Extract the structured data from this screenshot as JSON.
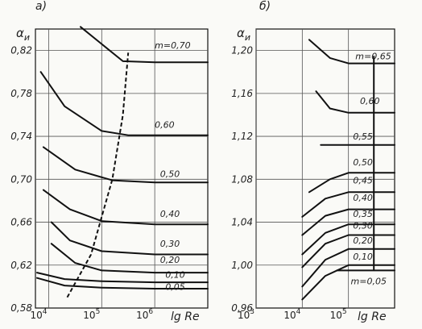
{
  "chart_data": [
    {
      "type": "line",
      "panel_label": "а)",
      "ylabel": "α",
      "ylabel_sub": "и",
      "xlabel": "lg Re",
      "ylim": [
        0.58,
        0.84
      ],
      "xlim": [
        3.75,
        7.0
      ],
      "y_ticks": [
        {
          "v": 0.58,
          "label": "0,58"
        },
        {
          "v": 0.62,
          "label": "0,62"
        },
        {
          "v": 0.66,
          "label": "0,66"
        },
        {
          "v": 0.7,
          "label": "0,70"
        },
        {
          "v": 0.74,
          "label": "0,74"
        },
        {
          "v": 0.78,
          "label": "0,78"
        },
        {
          "v": 0.82,
          "label": "0,82"
        }
      ],
      "x_ticks": [
        {
          "v": 4,
          "label": "10",
          "exp": "4"
        },
        {
          "v": 5,
          "label": "10",
          "exp": "5"
        },
        {
          "v": 6,
          "label": "10",
          "exp": "6"
        }
      ],
      "series": [
        {
          "name": "0,05",
          "label_x": 6.2,
          "label_y": 0.597,
          "points": [
            [
              3.78,
              0.608
            ],
            [
              4.3,
              0.601
            ],
            [
              5.0,
              0.599
            ],
            [
              6.0,
              0.598
            ],
            [
              7.0,
              0.598
            ]
          ]
        },
        {
          "name": "0,10",
          "label_x": 6.2,
          "label_y": 0.608,
          "points": [
            [
              3.78,
              0.613
            ],
            [
              4.3,
              0.607
            ],
            [
              5.0,
              0.605
            ],
            [
              6.0,
              0.604
            ],
            [
              7.0,
              0.604
            ]
          ]
        },
        {
          "name": "0,20",
          "label_x": 6.1,
          "label_y": 0.622,
          "points": [
            [
              4.05,
              0.64
            ],
            [
              4.5,
              0.622
            ],
            [
              5.0,
              0.615
            ],
            [
              6.0,
              0.613
            ],
            [
              7.0,
              0.613
            ]
          ]
        },
        {
          "name": "0,30",
          "label_x": 6.1,
          "label_y": 0.637,
          "points": [
            [
              4.05,
              0.66
            ],
            [
              4.4,
              0.643
            ],
            [
              5.0,
              0.633
            ],
            [
              6.0,
              0.63
            ],
            [
              7.0,
              0.63
            ]
          ]
        },
        {
          "name": "0,40",
          "label_x": 6.1,
          "label_y": 0.665,
          "points": [
            [
              3.9,
              0.69
            ],
            [
              4.4,
              0.672
            ],
            [
              5.0,
              0.661
            ],
            [
              6.0,
              0.658
            ],
            [
              7.0,
              0.658
            ]
          ]
        },
        {
          "name": "0,50",
          "label_x": 6.1,
          "label_y": 0.702,
          "points": [
            [
              3.9,
              0.73
            ],
            [
              4.5,
              0.709
            ],
            [
              5.2,
              0.699
            ],
            [
              6.0,
              0.697
            ],
            [
              7.0,
              0.697
            ]
          ]
        },
        {
          "name": "0,60",
          "label_x": 6.0,
          "label_y": 0.748,
          "points": [
            [
              3.85,
              0.8
            ],
            [
              4.3,
              0.768
            ],
            [
              5.0,
              0.745
            ],
            [
              5.5,
              0.741
            ],
            [
              7.0,
              0.741
            ]
          ]
        },
        {
          "name": "m=0,70",
          "label_x": 6.0,
          "label_y": 0.822,
          "points": [
            [
              4.6,
              0.842
            ],
            [
              5.0,
              0.826
            ],
            [
              5.4,
              0.81
            ],
            [
              6.0,
              0.809
            ],
            [
              7.0,
              0.809
            ]
          ]
        }
      ],
      "boundary": {
        "style": "dashed",
        "points": [
          [
            4.35,
            0.59
          ],
          [
            4.8,
            0.63
          ],
          [
            5.2,
            0.7
          ],
          [
            5.4,
            0.76
          ],
          [
            5.5,
            0.818
          ]
        ]
      }
    },
    {
      "type": "line",
      "panel_label": "б)",
      "ylabel": "α",
      "ylabel_sub": "и",
      "xlabel": "lg Re",
      "ylim": [
        0.96,
        1.22
      ],
      "xlim": [
        3.0,
        6.0
      ],
      "y_ticks": [
        {
          "v": 0.96,
          "label": "0,96"
        },
        {
          "v": 1.0,
          "label": "1,00"
        },
        {
          "v": 1.04,
          "label": "1,04"
        },
        {
          "v": 1.08,
          "label": "1,08"
        },
        {
          "v": 1.12,
          "label": "1,12"
        },
        {
          "v": 1.16,
          "label": "1,16"
        },
        {
          "v": 1.2,
          "label": "1,20"
        }
      ],
      "x_ticks": [
        {
          "v": 3,
          "label": "10",
          "exp": "3"
        },
        {
          "v": 4,
          "label": "10",
          "exp": "4"
        },
        {
          "v": 5,
          "label": "10",
          "exp": "5"
        }
      ],
      "series": [
        {
          "name": "m=0,05",
          "label_x": 5.05,
          "label_y": 0.982,
          "points": [
            [
              4.75,
              0.995
            ],
            [
              6.0,
              0.995
            ]
          ]
        },
        {
          "name": "0,10",
          "label_x": 5.1,
          "label_y": 1.005,
          "points": [
            [
              4.0,
              0.968
            ],
            [
              4.5,
              0.99
            ],
            [
              5.0,
              1.0
            ],
            [
              6.0,
              1.0
            ]
          ]
        },
        {
          "name": "0,20",
          "label_x": 5.1,
          "label_y": 1.02,
          "points": [
            [
              4.0,
              0.98
            ],
            [
              4.5,
              1.005
            ],
            [
              5.0,
              1.015
            ],
            [
              6.0,
              1.015
            ]
          ]
        },
        {
          "name": "0,30",
          "label_x": 5.1,
          "label_y": 1.034,
          "points": [
            [
              4.0,
              0.998
            ],
            [
              4.5,
              1.02
            ],
            [
              5.0,
              1.028
            ],
            [
              6.0,
              1.028
            ]
          ]
        },
        {
          "name": "0,35",
          "label_x": 5.1,
          "label_y": 1.045,
          "points": [
            [
              4.0,
              1.01
            ],
            [
              4.5,
              1.03
            ],
            [
              5.0,
              1.038
            ],
            [
              6.0,
              1.038
            ]
          ]
        },
        {
          "name": "0,40",
          "label_x": 5.1,
          "label_y": 1.06,
          "points": [
            [
              4.0,
              1.028
            ],
            [
              4.5,
              1.046
            ],
            [
              5.0,
              1.052
            ],
            [
              6.0,
              1.052
            ]
          ]
        },
        {
          "name": "0,45",
          "label_x": 5.1,
          "label_y": 1.076,
          "points": [
            [
              4.0,
              1.045
            ],
            [
              4.5,
              1.062
            ],
            [
              5.0,
              1.068
            ],
            [
              6.0,
              1.068
            ]
          ]
        },
        {
          "name": "0,50",
          "label_x": 5.1,
          "label_y": 1.093,
          "points": [
            [
              4.15,
              1.068
            ],
            [
              4.6,
              1.08
            ],
            [
              5.0,
              1.086
            ],
            [
              6.0,
              1.086
            ]
          ]
        },
        {
          "name": "0,55",
          "label_x": 5.1,
          "label_y": 1.117,
          "points": [
            [
              4.4,
              1.112
            ],
            [
              6.0,
              1.112
            ]
          ]
        },
        {
          "name": "0,60",
          "label_x": 5.25,
          "label_y": 1.15,
          "points": [
            [
              4.3,
              1.162
            ],
            [
              4.6,
              1.146
            ],
            [
              5.0,
              1.142
            ],
            [
              6.0,
              1.142
            ]
          ]
        },
        {
          "name": "m=0,65",
          "label_x": 5.15,
          "label_y": 1.192,
          "points": [
            [
              4.15,
              1.21
            ],
            [
              4.6,
              1.193
            ],
            [
              5.0,
              1.188
            ],
            [
              6.0,
              1.188
            ]
          ]
        }
      ],
      "boundary": {
        "style": "solid",
        "points": [
          [
            5.55,
            1.195
          ],
          [
            5.55,
            0.995
          ]
        ]
      }
    }
  ]
}
